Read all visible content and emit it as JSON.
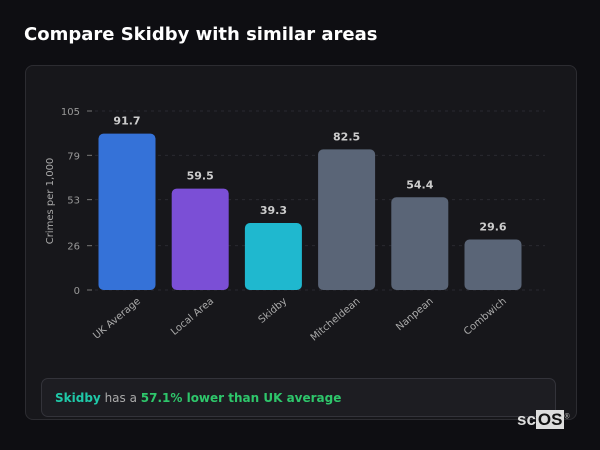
{
  "title": "Compare Skidby with similar areas",
  "chart_data": {
    "type": "bar",
    "ylabel": "Crimes per 1,000",
    "ylim": [
      0,
      105
    ],
    "yticks": [
      0,
      26,
      53,
      79,
      105
    ],
    "grid": true,
    "categories": [
      "UK Average",
      "Local Area",
      "Skidby",
      "Mitcheldean",
      "Nanpean",
      "Combwich"
    ],
    "values": [
      91.7,
      59.5,
      39.3,
      82.5,
      54.4,
      29.6
    ],
    "colors": [
      "#3572d8",
      "#7b4fd6",
      "#1fb8cf",
      "#5a6577",
      "#5a6577",
      "#5a6577"
    ]
  },
  "note": {
    "place": "Skidby",
    "middle": " has a ",
    "highlight": "57.1% lower than UK average",
    "place_color": "#1fc8a8",
    "highlight_color": "#2ec66b"
  },
  "logo": "scOS"
}
